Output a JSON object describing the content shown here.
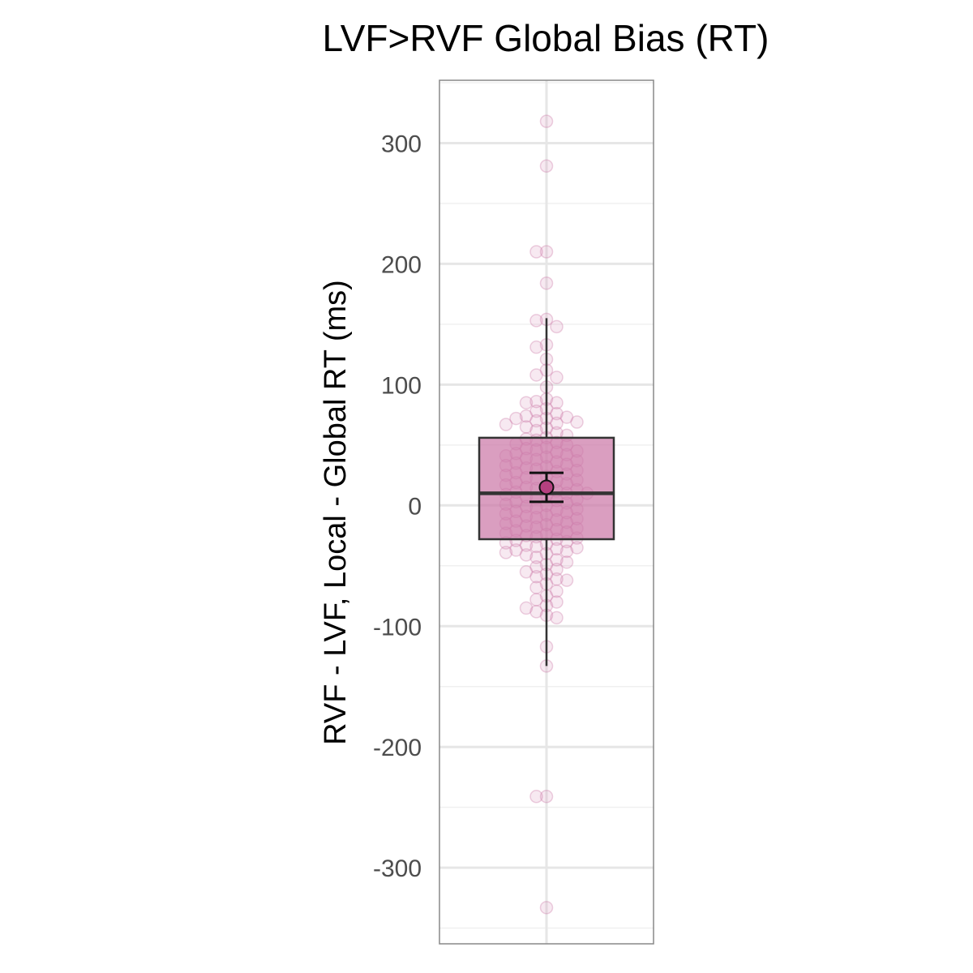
{
  "chart_data": {
    "type": "box",
    "title": "LVF>RVF Global Bias (RT)",
    "xlabel": "",
    "ylabel": "RVF - LVF, Local - Global RT (ms)",
    "ylim": [
      -363,
      352
    ],
    "yticks": [
      300,
      200,
      100,
      0,
      -100,
      -200,
      -300
    ],
    "ytick_labels": [
      "300",
      "200",
      "100",
      "0",
      "-100",
      "-200",
      "-300"
    ],
    "grid": true,
    "colors": {
      "box_fill": "#cc79a7",
      "point": "#cc79a7",
      "mean_point": "#b5407f",
      "outline": "#333333"
    },
    "box": {
      "q1": -28,
      "median": 10,
      "q3": 56,
      "whisker_low": -133,
      "whisker_high": 155
    },
    "mean": 15,
    "mean_ci": [
      3,
      27
    ],
    "points": [
      318,
      281,
      210,
      210,
      184,
      154,
      153,
      148,
      133,
      131,
      121,
      112,
      108,
      106,
      98,
      88,
      86,
      85,
      85,
      80,
      78,
      76,
      74,
      73,
      72,
      72,
      70,
      69,
      68,
      67,
      65,
      64,
      62,
      60,
      58,
      56,
      55,
      54,
      52,
      51,
      50,
      48,
      47,
      46,
      45,
      44,
      43,
      42,
      41,
      40,
      39,
      38,
      37,
      36,
      35,
      34,
      33,
      32,
      31,
      30,
      29,
      28,
      27,
      26,
      25,
      24,
      23,
      22,
      21,
      20,
      19,
      18,
      17,
      16,
      15,
      14,
      13,
      12,
      11,
      10,
      10,
      9,
      8,
      7,
      6,
      5,
      4,
      3,
      2,
      1,
      0,
      -1,
      -2,
      -3,
      -4,
      -5,
      -6,
      -7,
      -8,
      -9,
      -10,
      -11,
      -12,
      -13,
      -14,
      -15,
      -16,
      -17,
      -18,
      -19,
      -20,
      -21,
      -22,
      -23,
      -24,
      -25,
      -26,
      -27,
      -28,
      -29,
      -30,
      -31,
      -32,
      -33,
      -34,
      -35,
      -36,
      -37,
      -38,
      -39,
      -40,
      -41,
      -43,
      -45,
      -47,
      -49,
      -51,
      -53,
      -55,
      -57,
      -59,
      -61,
      -62,
      -65,
      -68,
      -71,
      -75,
      -78,
      -80,
      -83,
      -85,
      -88,
      -91,
      -93,
      -117,
      -133,
      -241,
      -241,
      -333
    ]
  }
}
